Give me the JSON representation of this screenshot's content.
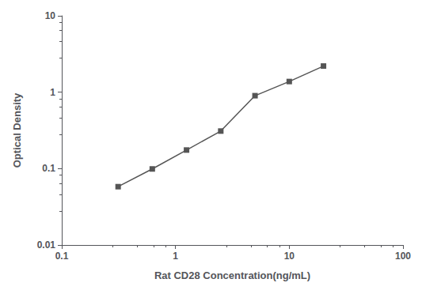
{
  "chart_data": {
    "type": "line",
    "x": [
      0.313,
      0.625,
      1.25,
      2.5,
      5.0,
      10.0,
      20.0
    ],
    "values": [
      0.058,
      0.099,
      0.175,
      0.31,
      0.9,
      1.38,
      2.2
    ],
    "xlabel": "Rat CD28 Concentration(ng/mL)",
    "ylabel": "Optical Density",
    "xlim": [
      0.1,
      100
    ],
    "ylim": [
      0.01,
      10
    ],
    "xticks": [
      0.1,
      1,
      10,
      100
    ],
    "yticks": [
      0.01,
      0.1,
      1,
      10
    ],
    "log": true,
    "grid": false,
    "color": "#555555",
    "marker": "square"
  }
}
